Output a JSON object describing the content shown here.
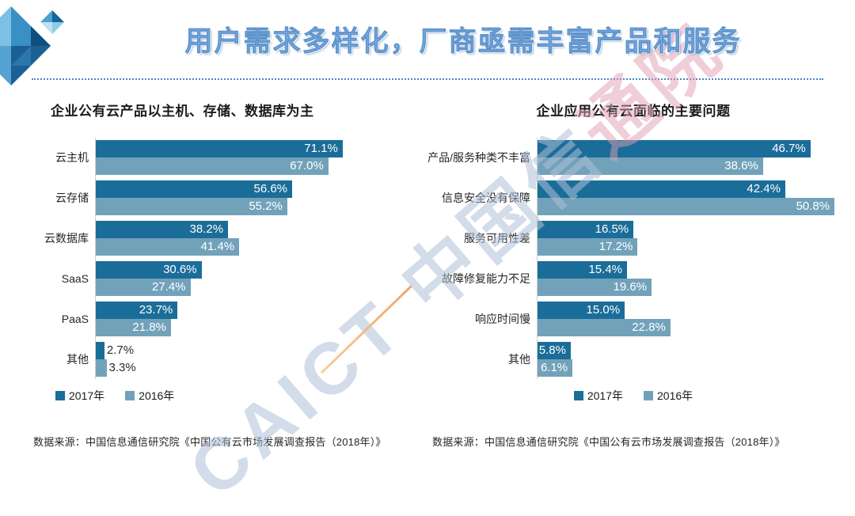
{
  "slide": {
    "title": "用户需求多样化，厂商亟需丰富产品和服务",
    "watermark_blue": "CAICT 中国信",
    "watermark_pink": "通院"
  },
  "colors": {
    "bar_2017": "#1b6d99",
    "bar_2016": "#72a2ba",
    "accent_blue": "#4f87c4"
  },
  "chart_data": [
    {
      "type": "bar",
      "orientation": "horizontal",
      "title": "企业公有云产品以主机、存储、数据库为主",
      "categories": [
        "云主机",
        "云存储",
        "云数据库",
        "SaaS",
        "PaaS",
        "其他"
      ],
      "series": [
        {
          "name": "2017年",
          "color": "#1b6d99",
          "values": [
            71.1,
            56.6,
            38.2,
            30.6,
            23.7,
            2.7
          ]
        },
        {
          "name": "2016年",
          "color": "#72a2ba",
          "values": [
            67.0,
            55.2,
            41.4,
            27.4,
            21.8,
            3.3
          ]
        }
      ],
      "value_suffix": "%",
      "xlim": [
        0,
        75
      ],
      "grid": false,
      "legend_position": "bottom",
      "source": "数据来源：中国信息通信研究院《中国公有云市场发展调查报告（2018年）》"
    },
    {
      "type": "bar",
      "orientation": "horizontal",
      "title": "企业应用公有云面临的主要问题",
      "categories": [
        "产品/服务种类不丰富",
        "信息安全没有保障",
        "服务可用性差",
        "故障修复能力不足",
        "响应时间慢",
        "其他"
      ],
      "series": [
        {
          "name": "2017年",
          "color": "#1b6d99",
          "values": [
            46.7,
            42.4,
            16.5,
            15.4,
            15.0,
            5.8
          ]
        },
        {
          "name": "2016年",
          "color": "#72a2ba",
          "values": [
            38.6,
            50.8,
            17.2,
            19.6,
            22.8,
            6.1
          ]
        }
      ],
      "value_suffix": "%",
      "xlim": [
        0,
        52
      ],
      "grid": false,
      "legend_position": "bottom",
      "source": "数据来源：中国信息通信研究院《中国公有云市场发展调查报告（2018年）》"
    }
  ]
}
